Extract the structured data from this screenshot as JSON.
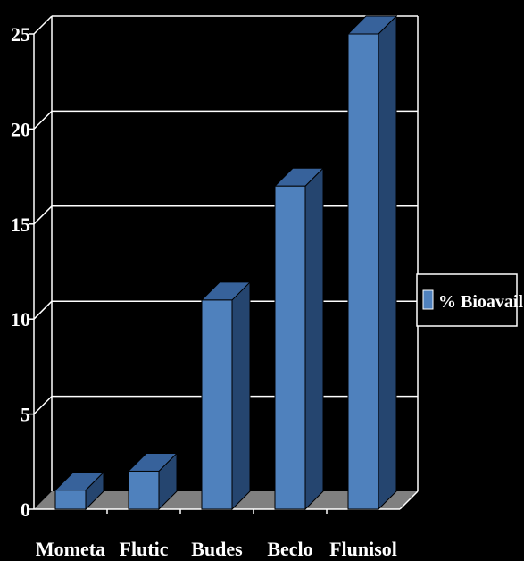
{
  "chart_data": {
    "type": "bar",
    "three_d": true,
    "categories": [
      "Mometa",
      "Flutic",
      "Budes",
      "Beclo",
      "Flunisol"
    ],
    "series": [
      {
        "name": "% Bioavail",
        "values": [
          1,
          2,
          11,
          17,
          25
        ]
      }
    ],
    "ylim": [
      0,
      25
    ],
    "yticks": [
      0,
      5,
      10,
      15,
      20,
      25
    ],
    "xlabel": "",
    "ylabel": "",
    "title": "",
    "grid": true,
    "legend_position": "right",
    "colors": {
      "background": "#000000",
      "bar_front": "#4f81bd",
      "bar_top": "#37629b",
      "bar_side": "#25456f",
      "floor": "#808080",
      "grid": "#ffffff",
      "text": "#ffffff"
    }
  }
}
